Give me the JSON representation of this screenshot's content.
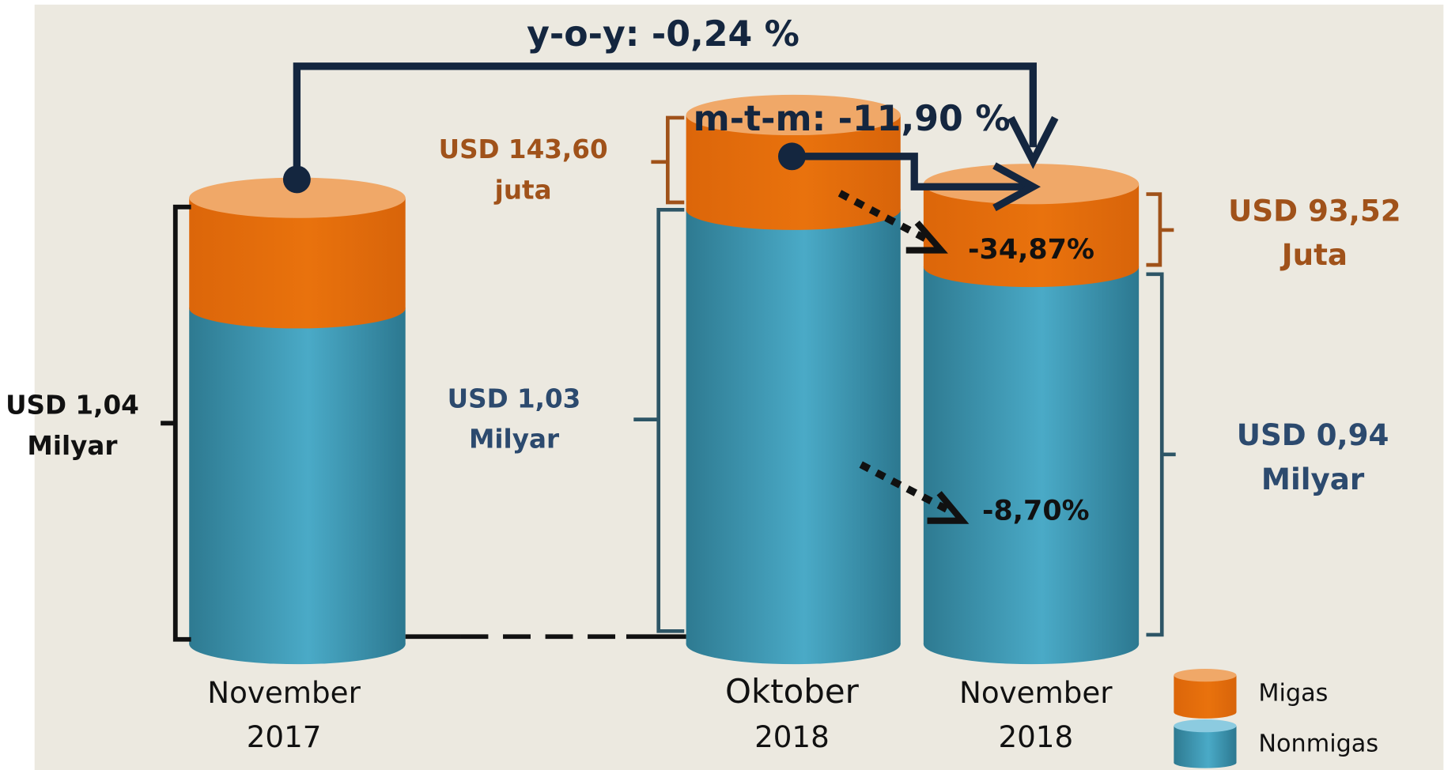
{
  "annotations": {
    "yoy": "y-o-y:  -0,24 %",
    "mtm": "m-t-m: -11,90 %"
  },
  "columns": [
    {
      "label": [
        "November",
        "2017"
      ],
      "total_label": [
        "USD 1,04",
        "Milyar"
      ]
    },
    {
      "label": [
        "Oktober",
        "2018"
      ],
      "migas_label": [
        "USD 143,60",
        "juta"
      ],
      "nonmigas_label": [
        "USD 1,03",
        "Milyar"
      ]
    },
    {
      "label": [
        "November",
        "2018"
      ],
      "migas_label": [
        "USD 93,52",
        "Juta"
      ],
      "nonmigas_label": [
        "USD 0,94",
        "Milyar"
      ],
      "migas_change": "-34,87%",
      "nonmigas_change": "-8,70%"
    }
  ],
  "legend": [
    "Migas",
    "Nonmigas"
  ]
}
